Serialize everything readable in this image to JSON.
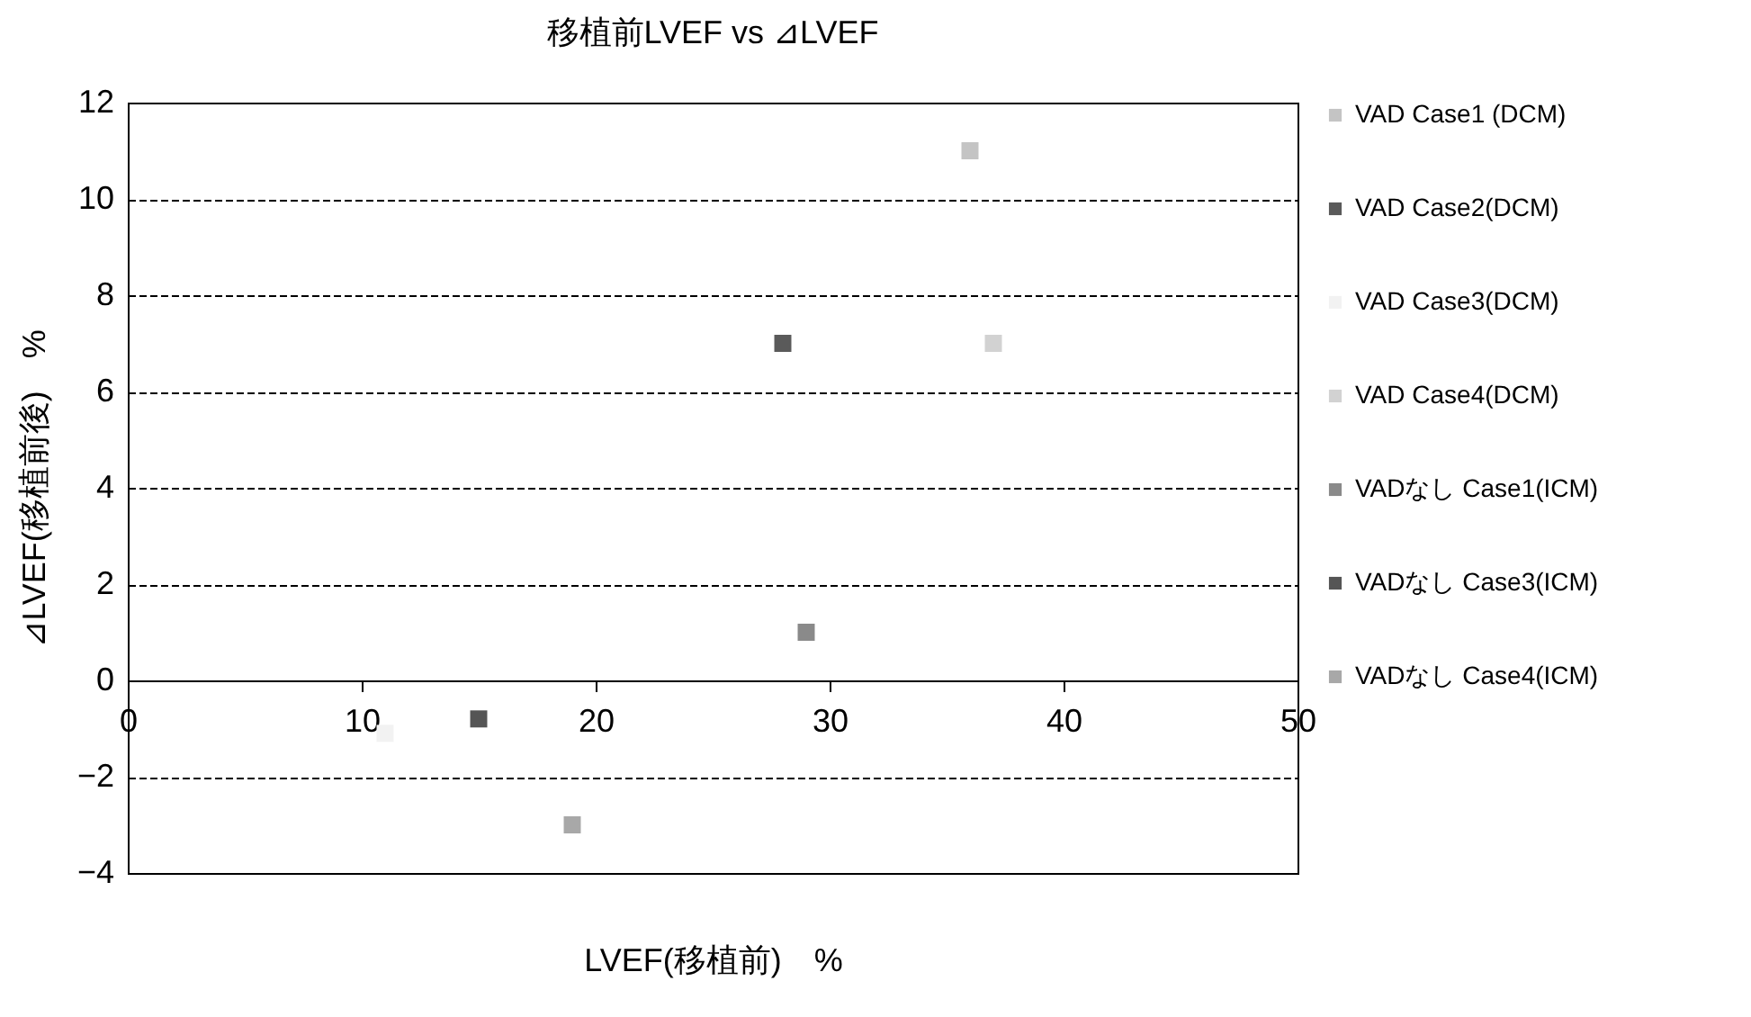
{
  "chart_data": {
    "type": "scatter",
    "title": "移植前LVEF vs ⊿LVEF",
    "xlabel": "LVEF(移植前)　%",
    "ylabel": "⊿LVEF(移植前後)　%",
    "xlim": [
      0,
      50
    ],
    "xticks": [
      0,
      10,
      20,
      30,
      40,
      50
    ],
    "ylim": [
      -4,
      12
    ],
    "yticks": [
      -4,
      -2,
      0,
      2,
      4,
      6,
      8,
      10,
      12
    ],
    "grid": "y",
    "legend": "right",
    "marker": "square",
    "series": [
      {
        "name": "VAD Case1 (DCM)",
        "color": "#c4c4c4",
        "x": [
          36
        ],
        "values": [
          11
        ]
      },
      {
        "name": "VAD Case2(DCM)",
        "color": "#5a5a5a",
        "x": [
          28
        ],
        "values": [
          7
        ]
      },
      {
        "name": "VAD Case3(DCM)",
        "color": "#f2f2f2",
        "x": [
          11
        ],
        "values": [
          -1.1
        ]
      },
      {
        "name": "VAD Case4(DCM)",
        "color": "#d2d2d2",
        "x": [
          37
        ],
        "values": [
          7
        ]
      },
      {
        "name": "VADなし Case1(ICM)",
        "color": "#8a8a8a",
        "x": [
          29
        ],
        "values": [
          1
        ]
      },
      {
        "name": "VADなし Case3(ICM)",
        "color": "#555555",
        "x": [
          15
        ],
        "values": [
          -0.8
        ]
      },
      {
        "name": "VADなし Case4(ICM)",
        "color": "#a8a8a8",
        "x": [
          19
        ],
        "values": [
          -3
        ]
      }
    ]
  }
}
